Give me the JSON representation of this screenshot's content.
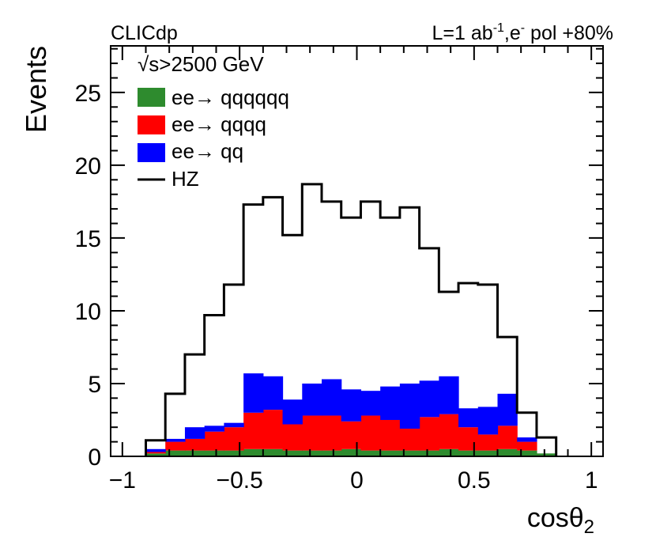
{
  "header": {
    "left": "CLICdp",
    "right_lumi": "L=1 ab",
    "right_lumi_sup": "-1",
    "right_beam": ",e",
    "right_beam_sup": "-",
    "right_pol": " pol +80%"
  },
  "chart_data": {
    "type": "histogram",
    "xlabel": "cosθ",
    "xlabel_sub": "2",
    "ylabel": "Events",
    "xlim": [
      -1.05,
      1.05
    ],
    "ylim": [
      0,
      28.2
    ],
    "x_ticks": [
      -1,
      -0.5,
      0,
      0.5,
      1
    ],
    "x_tick_labels": [
      "−1",
      "−0.5",
      "0",
      "0.5",
      "1"
    ],
    "y_ticks": [
      0,
      5,
      10,
      15,
      20,
      25
    ],
    "y_tick_labels": [
      "0",
      "5",
      "10",
      "15",
      "20",
      "25"
    ],
    "bin_edges": [
      -0.9,
      -0.8167,
      -0.7333,
      -0.65,
      -0.5667,
      -0.4833,
      -0.4,
      -0.3167,
      -0.2333,
      -0.15,
      -0.0667,
      0.0167,
      0.1,
      0.1833,
      0.2667,
      0.35,
      0.4333,
      0.5167,
      0.6,
      0.6833,
      0.7667,
      0.85
    ],
    "legend": {
      "header": "√s>2500 GeV",
      "entries": [
        "ee→ qqqqqq",
        "ee→ qqqq",
        "ee→ qq",
        "HZ"
      ]
    },
    "series": [
      {
        "name": "ee→ qqqqqq",
        "kind": "stacked-fill",
        "color": "#2e8b2e",
        "values": [
          0.2,
          0.4,
          0.4,
          0.4,
          0.4,
          0.5,
          0.5,
          0.4,
          0.4,
          0.4,
          0.5,
          0.4,
          0.4,
          0.4,
          0.4,
          0.5,
          0.4,
          0.4,
          0.5,
          0.4,
          0.2
        ]
      },
      {
        "name": "ee→ qqqq",
        "kind": "stacked-fill",
        "color": "#ff0000",
        "values": [
          0.1,
          0.6,
          0.8,
          1.3,
          1.6,
          2.5,
          2.7,
          1.8,
          2.4,
          2.4,
          1.9,
          2.4,
          2.1,
          1.5,
          2.3,
          2.4,
          1.6,
          1.1,
          1.6,
          0.6,
          0.0
        ]
      },
      {
        "name": "ee→ qq",
        "kind": "stacked-fill",
        "color": "#0000ff",
        "values": [
          0.2,
          0.2,
          0.8,
          0.4,
          0.3,
          2.7,
          2.3,
          1.7,
          2.2,
          2.5,
          2.2,
          1.7,
          2.3,
          3.1,
          2.5,
          2.6,
          1.3,
          1.9,
          2.2,
          0.3,
          0.0
        ]
      },
      {
        "name": "HZ",
        "kind": "line",
        "color": "#000000",
        "values": [
          1.1,
          4.3,
          7.0,
          9.7,
          11.8,
          17.3,
          17.8,
          15.2,
          18.7,
          17.5,
          16.4,
          17.5,
          16.4,
          17.1,
          14.3,
          11.3,
          11.9,
          11.8,
          8.2,
          3.0,
          1.3
        ]
      }
    ]
  }
}
